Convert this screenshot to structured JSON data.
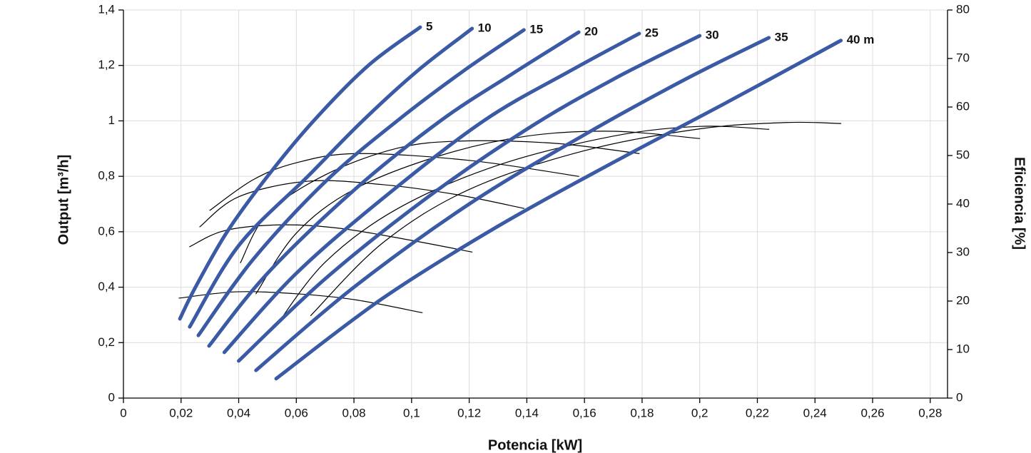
{
  "chart_data": {
    "type": "line",
    "xlabel": "Potencia [kW]",
    "ylabel": "Output [m³/h]",
    "y2label": "Eficiencia [%]",
    "xlim": [
      0,
      0.286
    ],
    "ylim": [
      0,
      1.4
    ],
    "y2lim": [
      0,
      80
    ],
    "xticks": [
      0,
      {
        "value": 0.02,
        "label": "0,02"
      },
      {
        "value": 0.04,
        "label": "0,04"
      },
      {
        "value": 0.06,
        "label": "0,06"
      },
      {
        "value": 0.08,
        "label": "0,08"
      },
      {
        "value": 0.1,
        "label": "0,1"
      },
      {
        "value": 0.12,
        "label": "0,12"
      },
      {
        "value": 0.14,
        "label": "0,14"
      },
      {
        "value": 0.16,
        "label": "0,16"
      },
      {
        "value": 0.18,
        "label": "0,18"
      },
      {
        "value": 0.2,
        "label": "0,2"
      },
      {
        "value": 0.22,
        "label": "0,22"
      },
      {
        "value": 0.24,
        "label": "0,24"
      },
      {
        "value": 0.26,
        "label": "0,26"
      },
      {
        "value": 0.28,
        "label": "0,28"
      }
    ],
    "yticks": [
      0,
      {
        "value": 0.2,
        "label": "0,2"
      },
      {
        "value": 0.4,
        "label": "0,4"
      },
      {
        "value": 0.6,
        "label": "0,6"
      },
      {
        "value": 0.8,
        "label": "0,8"
      },
      1,
      {
        "value": 1.2,
        "label": "1,2"
      },
      {
        "value": 1.4,
        "label": "1,4"
      }
    ],
    "y2ticks": [
      0,
      10,
      20,
      30,
      40,
      50,
      60,
      70,
      80
    ],
    "grid": true,
    "series": [
      {
        "name": "5",
        "color": "#3b5aa6",
        "x": [
          0.0196,
          0.025,
          0.036,
          0.05,
          0.066,
          0.085,
          0.103
        ],
        "values": [
          0.286,
          0.4,
          0.6,
          0.8,
          1.0,
          1.2,
          1.338
        ]
      },
      {
        "name": "10",
        "color": "#3b5aa6",
        "x": [
          0.023,
          0.04,
          0.064,
          0.083,
          0.102,
          0.121
        ],
        "values": [
          0.257,
          0.55,
          0.8,
          1.0,
          1.18,
          1.333
        ]
      },
      {
        "name": "15",
        "color": "#3b5aa6",
        "x": [
          0.026,
          0.045,
          0.07,
          0.095,
          0.118,
          0.139
        ],
        "values": [
          0.226,
          0.5,
          0.78,
          1.0,
          1.18,
          1.328
        ]
      },
      {
        "name": "20",
        "color": "#3b5aa6",
        "x": [
          0.0297,
          0.05,
          0.08,
          0.11,
          0.135,
          0.158
        ],
        "values": [
          0.188,
          0.45,
          0.75,
          1.0,
          1.17,
          1.32
        ]
      },
      {
        "name": "25",
        "color": "#3b5aa6",
        "x": [
          0.035,
          0.06,
          0.09,
          0.125,
          0.155,
          0.179
        ],
        "values": [
          0.165,
          0.45,
          0.72,
          1.0,
          1.18,
          1.315
        ]
      },
      {
        "name": "30",
        "color": "#3b5aa6",
        "x": [
          0.04,
          0.07,
          0.105,
          0.14,
          0.17,
          0.2
        ],
        "values": [
          0.134,
          0.43,
          0.72,
          0.97,
          1.15,
          1.307
        ]
      },
      {
        "name": "35",
        "color": "#3b5aa6",
        "x": [
          0.046,
          0.08,
          0.12,
          0.16,
          0.195,
          0.224
        ],
        "values": [
          0.1,
          0.4,
          0.7,
          0.95,
          1.15,
          1.3
        ]
      },
      {
        "name": "40 m",
        "color": "#3b5aa6",
        "x": [
          0.053,
          0.09,
          0.13,
          0.17,
          0.21,
          0.249
        ],
        "values": [
          0.07,
          0.36,
          0.62,
          0.85,
          1.07,
          1.29
        ]
      },
      {
        "axis": "y2",
        "color": "#000000",
        "x": [
          0.0193,
          0.039,
          0.06,
          0.08,
          0.1037
        ],
        "values": [
          20.6,
          21.9,
          21.5,
          20.3,
          17.6
        ]
      },
      {
        "axis": "y2",
        "color": "#000000",
        "x": [
          0.023,
          0.035,
          0.054,
          0.075,
          0.1,
          0.121
        ],
        "values": [
          31.2,
          34.5,
          35.7,
          35,
          32.5,
          30.1
        ]
      },
      {
        "axis": "y2",
        "color": "#000000",
        "x": [
          0.0265,
          0.04,
          0.064,
          0.09,
          0.115,
          0.139
        ],
        "values": [
          35.3,
          41.5,
          44.7,
          44,
          42,
          39.1
        ]
      },
      {
        "axis": "y2",
        "color": "#000000",
        "x": [
          0.03,
          0.045,
          0.06,
          0.081,
          0.12,
          0.158
        ],
        "values": [
          38.7,
          45,
          48.5,
          50.4,
          49,
          45.7
        ]
      },
      {
        "axis": "y2",
        "color": "#000000",
        "x": [
          0.0406,
          0.05,
          0.07,
          0.095,
          0.118,
          0.15,
          0.179
        ],
        "values": [
          27.9,
          38,
          46,
          51.5,
          53,
          52.5,
          50.4
        ]
      },
      {
        "axis": "y2",
        "color": "#000000",
        "x": [
          0.046,
          0.06,
          0.08,
          0.11,
          0.14,
          0.17,
          0.2
        ],
        "values": [
          21.5,
          34,
          43,
          50,
          54,
          55,
          53.5
        ]
      },
      {
        "axis": "y2",
        "color": "#000000",
        "x": [
          0.053,
          0.07,
          0.095,
          0.13,
          0.17,
          0.2,
          0.224
        ],
        "values": [
          14.9,
          28,
          39,
          48,
          54,
          56,
          55.4
        ]
      },
      {
        "axis": "y2",
        "color": "#000000",
        "x": [
          0.065,
          0.09,
          0.12,
          0.16,
          0.2,
          0.23,
          0.249
        ],
        "values": [
          17,
          32,
          43,
          51,
          55.5,
          56.8,
          56.6
        ]
      }
    ]
  }
}
